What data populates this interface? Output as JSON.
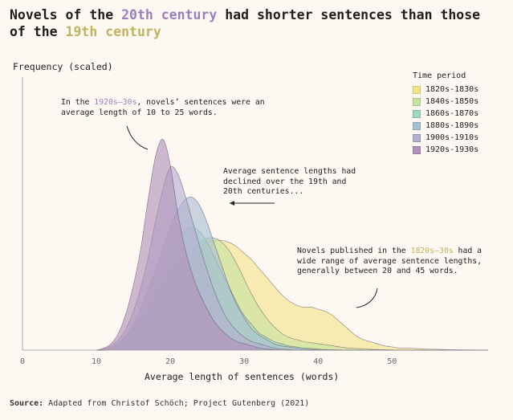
{
  "title": {
    "part1": "Novels of the ",
    "highlight1": "20th century",
    "part2": " had shorter sentences than those of the ",
    "highlight2": "19th century"
  },
  "source": {
    "label": "Source:",
    "text": " Adapted from Christof Schöch; Project Gutenberg (2021)"
  },
  "annotations": {
    "a1": {
      "pre": "In the ",
      "hl": "1920s–30s",
      "post": ", novels’ sentences were an average length of 10 to 25 words."
    },
    "a2": {
      "text": "Average sentence lengths had declined over the 19th and 20th centuries..."
    },
    "a3": {
      "pre": "Novels published in the ",
      "hl": "1820s–30s",
      "post": " had a wide range of average sentence lengths, generally between 20 and 45 words."
    }
  },
  "chart_data": {
    "type": "area",
    "ylabel": "Frequency (scaled)",
    "xlabel": "Average length of sentences (words)",
    "xlim": [
      0,
      63
    ],
    "ylim": [
      0,
      1
    ],
    "x_ticks": [
      0,
      10,
      20,
      30,
      40,
      50
    ],
    "legend_title": "Time period",
    "legend_placement": "top-right",
    "grid": false,
    "x": [
      10,
      11,
      12,
      13,
      14,
      15,
      16,
      17,
      18,
      19,
      20,
      21,
      22,
      23,
      24,
      25,
      26,
      27,
      28,
      29,
      30,
      31,
      32,
      33,
      34,
      35,
      36,
      37,
      38,
      39,
      40,
      41,
      42,
      43,
      44,
      45,
      46,
      47,
      48,
      49,
      50,
      51,
      52,
      53,
      54,
      55,
      56,
      57,
      58,
      59,
      60,
      61,
      62,
      63
    ],
    "series": [
      {
        "name": "1820s-1830s",
        "color": "#f6e48a",
        "values": [
          0,
          0,
          0.005,
          0.02,
          0.04,
          0.07,
          0.11,
          0.15,
          0.2,
          0.26,
          0.32,
          0.37,
          0.42,
          0.45,
          0.48,
          0.5,
          0.51,
          0.51,
          0.5,
          0.48,
          0.45,
          0.42,
          0.38,
          0.34,
          0.3,
          0.26,
          0.23,
          0.21,
          0.2,
          0.2,
          0.19,
          0.18,
          0.16,
          0.13,
          0.1,
          0.07,
          0.05,
          0.04,
          0.03,
          0.02,
          0.015,
          0.01,
          0.01,
          0.008,
          0.006,
          0.005,
          0.004,
          0.003,
          0.002,
          0.002,
          0.001,
          0.001,
          0,
          0
        ]
      },
      {
        "name": "1840s-1850s",
        "color": "#c7e3a2",
        "values": [
          0,
          0,
          0.01,
          0.02,
          0.05,
          0.09,
          0.14,
          0.19,
          0.25,
          0.31,
          0.36,
          0.4,
          0.44,
          0.47,
          0.5,
          0.52,
          0.52,
          0.5,
          0.46,
          0.4,
          0.33,
          0.26,
          0.2,
          0.15,
          0.11,
          0.08,
          0.06,
          0.05,
          0.04,
          0.035,
          0.03,
          0.025,
          0.02,
          0.015,
          0.01,
          0.008,
          0.006,
          0.004,
          0.003,
          0.002,
          0.001,
          0,
          0,
          0,
          0,
          0,
          0,
          0,
          0,
          0,
          0,
          0,
          0,
          0
        ]
      },
      {
        "name": "1860s-1870s",
        "color": "#9ed9c5",
        "values": [
          0,
          0,
          0.01,
          0.03,
          0.06,
          0.1,
          0.15,
          0.22,
          0.3,
          0.38,
          0.45,
          0.52,
          0.56,
          0.57,
          0.55,
          0.5,
          0.43,
          0.36,
          0.29,
          0.22,
          0.16,
          0.12,
          0.08,
          0.06,
          0.04,
          0.03,
          0.02,
          0.015,
          0.01,
          0.008,
          0.005,
          0.003,
          0.002,
          0.001,
          0,
          0,
          0,
          0,
          0,
          0,
          0,
          0,
          0,
          0,
          0,
          0,
          0,
          0,
          0,
          0,
          0,
          0,
          0,
          0
        ]
      },
      {
        "name": "1880s-1890s",
        "color": "#a8bfd2",
        "values": [
          0,
          0,
          0.01,
          0.03,
          0.07,
          0.12,
          0.19,
          0.28,
          0.37,
          0.47,
          0.57,
          0.65,
          0.7,
          0.71,
          0.67,
          0.59,
          0.49,
          0.39,
          0.29,
          0.21,
          0.15,
          0.1,
          0.07,
          0.05,
          0.03,
          0.02,
          0.015,
          0.01,
          0.005,
          0.003,
          0.002,
          0.001,
          0,
          0,
          0,
          0,
          0,
          0,
          0,
          0,
          0,
          0,
          0,
          0,
          0,
          0,
          0,
          0,
          0,
          0,
          0,
          0,
          0,
          0
        ]
      },
      {
        "name": "1900s-1910s",
        "color": "#b3afd0",
        "values": [
          0,
          0.005,
          0.02,
          0.05,
          0.1,
          0.18,
          0.29,
          0.43,
          0.6,
          0.75,
          0.85,
          0.82,
          0.72,
          0.6,
          0.48,
          0.37,
          0.27,
          0.19,
          0.13,
          0.09,
          0.06,
          0.04,
          0.03,
          0.02,
          0.01,
          0.005,
          0.003,
          0.001,
          0,
          0,
          0,
          0,
          0,
          0,
          0,
          0,
          0,
          0,
          0,
          0,
          0,
          0,
          0,
          0,
          0,
          0,
          0,
          0,
          0,
          0,
          0,
          0,
          0,
          0
        ]
      },
      {
        "name": "1920s-1930s",
        "color": "#b291b8",
        "values": [
          0,
          0.01,
          0.03,
          0.08,
          0.17,
          0.3,
          0.47,
          0.7,
          0.9,
          0.98,
          0.86,
          0.64,
          0.47,
          0.35,
          0.26,
          0.19,
          0.13,
          0.09,
          0.06,
          0.04,
          0.03,
          0.02,
          0.01,
          0.005,
          0.002,
          0.001,
          0,
          0,
          0,
          0,
          0,
          0,
          0,
          0,
          0,
          0,
          0,
          0,
          0,
          0,
          0,
          0,
          0,
          0,
          0,
          0,
          0,
          0,
          0,
          0,
          0,
          0,
          0,
          0
        ]
      }
    ]
  }
}
